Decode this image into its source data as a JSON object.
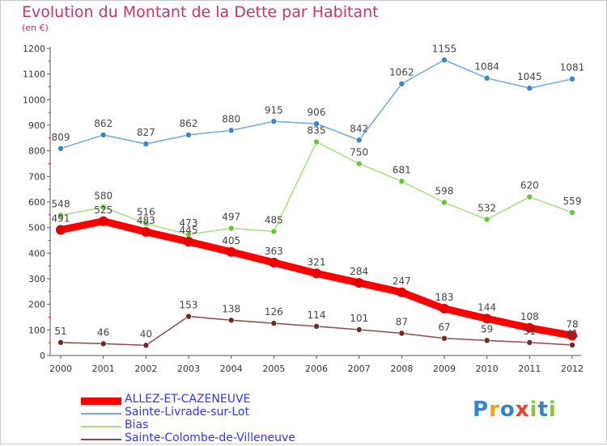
{
  "chart_data": {
    "type": "line",
    "title": "Evolution du Montant de la Dette par Habitant",
    "subtitle": "(en €)",
    "xlabel": "",
    "ylabel": "",
    "ylim": [
      0,
      1200
    ],
    "yticks": [
      0,
      100,
      200,
      300,
      400,
      500,
      600,
      700,
      800,
      900,
      1000,
      1100,
      1200
    ],
    "grid": false,
    "legend_position": "bottom-left",
    "categories": [
      "2000",
      "2001",
      "2002",
      "2003",
      "2004",
      "2005",
      "2006",
      "2007",
      "2008",
      "2009",
      "2010",
      "2011",
      "2012"
    ],
    "series": [
      {
        "name": "ALLEZ-ET-CAZENEUVE",
        "color": "#ff0000",
        "marker": "#e60000",
        "values": [
          491,
          525,
          483,
          445,
          405,
          363,
          321,
          284,
          247,
          183,
          144,
          108,
          78
        ]
      },
      {
        "name": "Sainte-Livrade-sur-Lot",
        "color": "#6fa8dc",
        "marker": "#3d85c6",
        "values": [
          809,
          862,
          827,
          862,
          880,
          915,
          906,
          842,
          1062,
          1155,
          1084,
          1045,
          1081
        ]
      },
      {
        "name": "Bias",
        "color": "#a6e27a",
        "marker": "#6cc43a",
        "values": [
          548,
          580,
          516,
          473,
          497,
          485,
          835,
          750,
          681,
          598,
          532,
          620,
          559
        ]
      },
      {
        "name": "Sainte-Colombe-de-Villeneuve",
        "color": "#8b4a4a",
        "marker": "#6e2a2a",
        "values": [
          51,
          46,
          40,
          153,
          138,
          126,
          114,
          101,
          87,
          67,
          59,
          51,
          41
        ]
      }
    ]
  },
  "logo": {
    "letters": [
      "P",
      "r",
      "o",
      "x",
      "i",
      "t",
      "i"
    ],
    "colors": [
      "#2f86c8",
      "#f0a020",
      "#2f86c8",
      "#e8422c",
      "#8cc63e",
      "#2f86c8",
      "#8cc63e"
    ]
  }
}
